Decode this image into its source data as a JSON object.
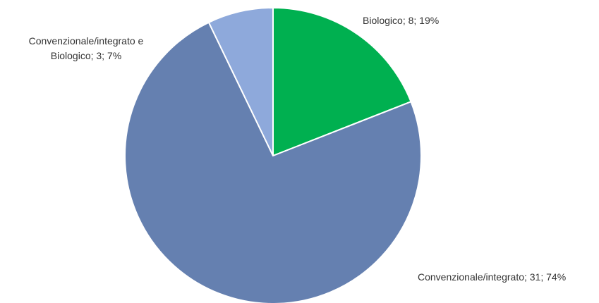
{
  "chart_data": {
    "type": "pie",
    "slices": [
      {
        "label": "Biologico",
        "value": 8,
        "percent": 19,
        "color": "#00b050",
        "data_label": [
          "Biologico; 8; 19%"
        ]
      },
      {
        "label": "Convenzionale/integrato",
        "value": 31,
        "percent": 74,
        "color": "#6580b0",
        "data_label": [
          "Convenzionale/integrato; 31; 74%"
        ]
      },
      {
        "label": "Convenzionale/integrato e Biologico",
        "value": 3,
        "percent": 7,
        "color": "#8ea9db",
        "data_label": [
          "Convenzionale/integrato e",
          "Biologico; 3; 7%"
        ]
      }
    ],
    "start": "12 o'clock",
    "direction": "clockwise",
    "legend": "none",
    "slice_border_color": "#ffffff"
  }
}
